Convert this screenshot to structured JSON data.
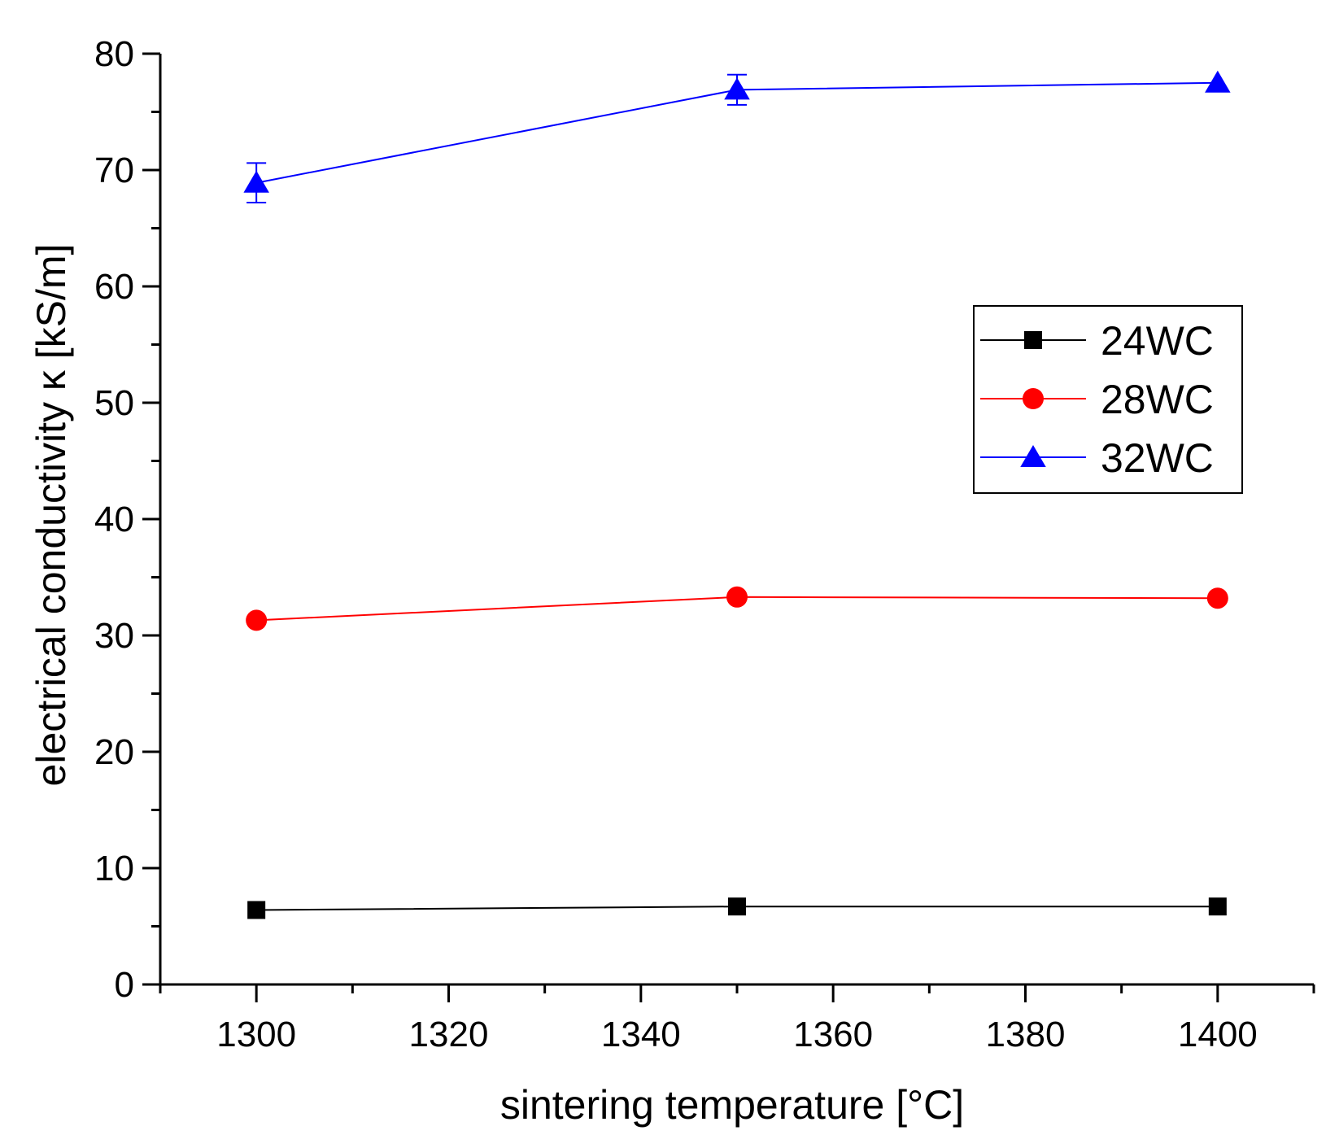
{
  "chart_data": {
    "type": "line",
    "title": "",
    "xlabel": "sintering temperature [°C]",
    "ylabel": "electrical conductivity κ [kS/m]",
    "xlim": [
      1290,
      1410
    ],
    "ylim": [
      0,
      80
    ],
    "xticks": [
      1300,
      1320,
      1340,
      1360,
      1380,
      1400
    ],
    "yticks": [
      0,
      10,
      20,
      30,
      40,
      50,
      60,
      70,
      80
    ],
    "x": [
      1300,
      1350,
      1400
    ],
    "grid": false,
    "legend_position": "upper-right",
    "series": [
      {
        "name": "24WC",
        "color": "#000000",
        "marker": "square",
        "values": [
          6.4,
          6.7,
          6.7
        ],
        "errors": [
          0,
          0,
          0
        ]
      },
      {
        "name": "28WC",
        "color": "#ff0000",
        "marker": "circle",
        "values": [
          31.3,
          33.3,
          33.2
        ],
        "errors": [
          0,
          0,
          0
        ]
      },
      {
        "name": "32WC",
        "color": "#0000ff",
        "marker": "triangle",
        "values": [
          68.9,
          76.9,
          77.5
        ],
        "errors": [
          1.7,
          1.3,
          0
        ]
      }
    ]
  }
}
